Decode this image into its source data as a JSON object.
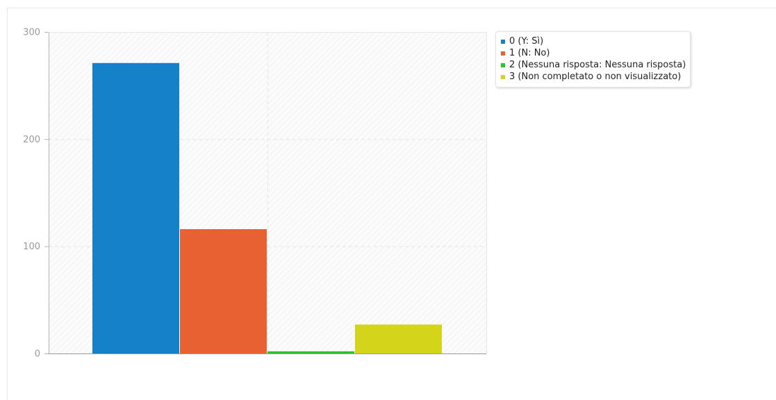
{
  "chart_data": {
    "type": "bar",
    "categories": [
      ""
    ],
    "series": [
      {
        "name": "0 (Y: Sì)",
        "values": [
          271
        ],
        "color": "#1581c9"
      },
      {
        "name": "1 (N: No)",
        "values": [
          116
        ],
        "color": "#e86133"
      },
      {
        "name": "2 (Nessuna risposta: Nessuna risposta)",
        "values": [
          2
        ],
        "color": "#2ac52c"
      },
      {
        "name": "3 (Non completato o non visualizzato)",
        "values": [
          27
        ],
        "color": "#d4d41b"
      }
    ],
    "yticks": [
      "0",
      "100",
      "200",
      "300"
    ],
    "ylim": [
      0,
      300
    ],
    "grid": true,
    "legend_position": "top-right",
    "title": "",
    "xlabel": "",
    "ylabel": ""
  }
}
